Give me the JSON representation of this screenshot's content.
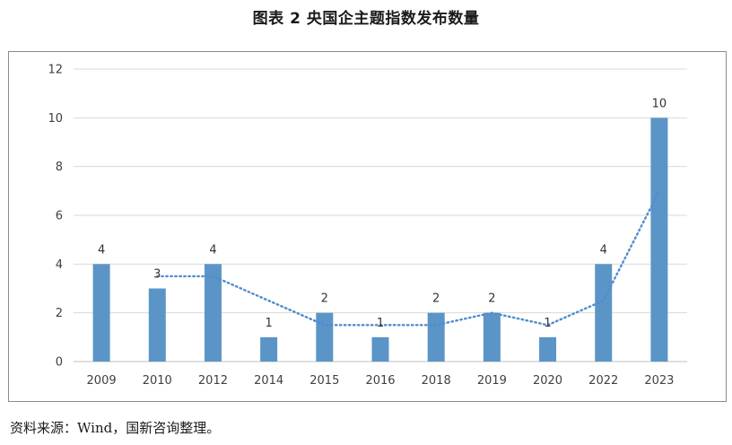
{
  "title": "图表 2 央国企主题指数发布数量",
  "source": "资料来源：Wind，国新咨询整理。",
  "colors": {
    "bar": "#5b95c7",
    "trend": "#4f8ccf",
    "grid": "#d9d9d9"
  },
  "chart_data": {
    "type": "bar",
    "categories": [
      "2009",
      "2010",
      "2012",
      "2014",
      "2015",
      "2016",
      "2018",
      "2019",
      "2020",
      "2022",
      "2023"
    ],
    "values": [
      4,
      3,
      4,
      1,
      2,
      1,
      2,
      2,
      1,
      4,
      10
    ],
    "data_labels": [
      "4",
      "3",
      "4",
      "1",
      "2",
      "1",
      "2",
      "2",
      "1",
      "4",
      "10"
    ],
    "trendline": {
      "type": "moving-average",
      "period": 2,
      "style": "dotted"
    },
    "ylim": [
      0,
      12
    ],
    "yticks": [
      "0",
      "2",
      "4",
      "6",
      "8",
      "10",
      "12"
    ],
    "grid": true,
    "legend": "none",
    "xlabel": "",
    "ylabel": ""
  }
}
